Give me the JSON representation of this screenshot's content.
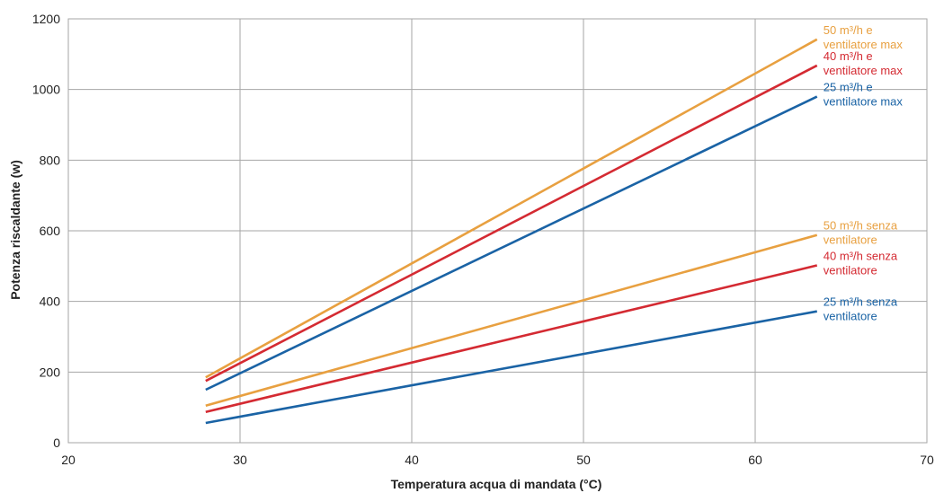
{
  "chart_data": {
    "type": "line",
    "xlabel": "Temperatura acqua di mandata (°C)",
    "ylabel": "Potenza riscaldante (w)",
    "xlim": [
      20,
      70
    ],
    "ylim": [
      0,
      1200
    ],
    "xticks": [
      "20",
      "30",
      "40",
      "50",
      "60",
      "70"
    ],
    "yticks": [
      "0",
      "200",
      "400",
      "600",
      "800",
      "1000",
      "1200"
    ],
    "grid": true,
    "series": [
      {
        "name_line1": "50 m³/h e",
        "name_line2": "ventilatore max",
        "color": "#e8a040",
        "x": [
          28,
          63.6
        ],
        "y": [
          185,
          1142
        ]
      },
      {
        "name_line1": "40 m³/h e",
        "name_line2": "ventilatore max",
        "color": "#d42a32",
        "x": [
          28,
          63.6
        ],
        "y": [
          175,
          1068
        ]
      },
      {
        "name_line1": "25 m³/h e",
        "name_line2": "ventilatore max",
        "color": "#1a63a5",
        "x": [
          28,
          63.6
        ],
        "y": [
          150,
          980
        ]
      },
      {
        "name_line1": "50 m³/h senza",
        "name_line2": "ventilatore",
        "color": "#e8a040",
        "x": [
          28,
          63.6
        ],
        "y": [
          105,
          588
        ]
      },
      {
        "name_line1": "40 m³/h senza",
        "name_line2": "ventilatore",
        "color": "#d42a32",
        "x": [
          28,
          63.6
        ],
        "y": [
          87,
          502
        ]
      },
      {
        "name_line1": "25 m³/h senza",
        "name_line2": "ventilatore",
        "color": "#1a63a5",
        "x": [
          28,
          63.6
        ],
        "y": [
          56,
          372
        ]
      }
    ]
  }
}
